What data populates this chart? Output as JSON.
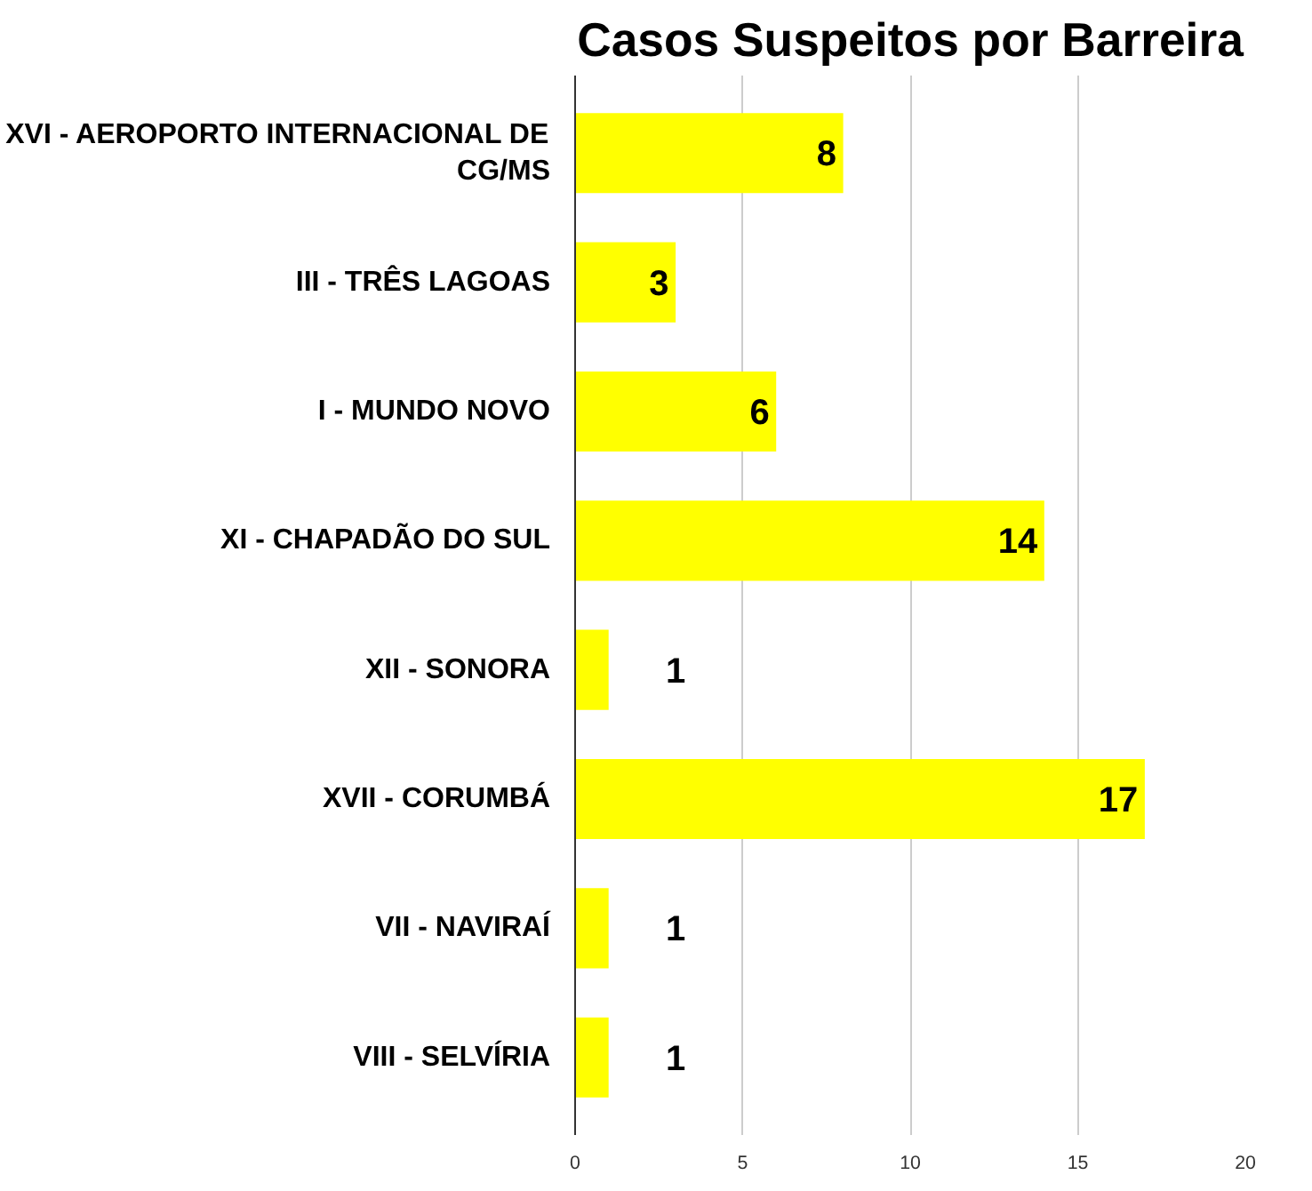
{
  "chart_data": {
    "type": "bar",
    "orientation": "horizontal",
    "title": "Casos Suspeitos por Barreira",
    "categories": [
      "XVI - AEROPORTO INTERNACIONAL DE CG/MS",
      "III - TRÊS LAGOAS",
      "I - MUNDO NOVO",
      "XI - CHAPADÃO DO SUL",
      "XII - SONORA",
      "XVII - CORUMBÁ",
      "VII - NAVIRAÍ",
      "VIII - SELVÍRIA"
    ],
    "values": [
      8,
      3,
      6,
      14,
      1,
      17,
      1,
      1
    ],
    "color": "#ffff00",
    "xlim": [
      0,
      20
    ],
    "xticks": [
      0,
      5,
      10,
      15,
      20
    ],
    "grid": "x",
    "data_labels": true
  }
}
